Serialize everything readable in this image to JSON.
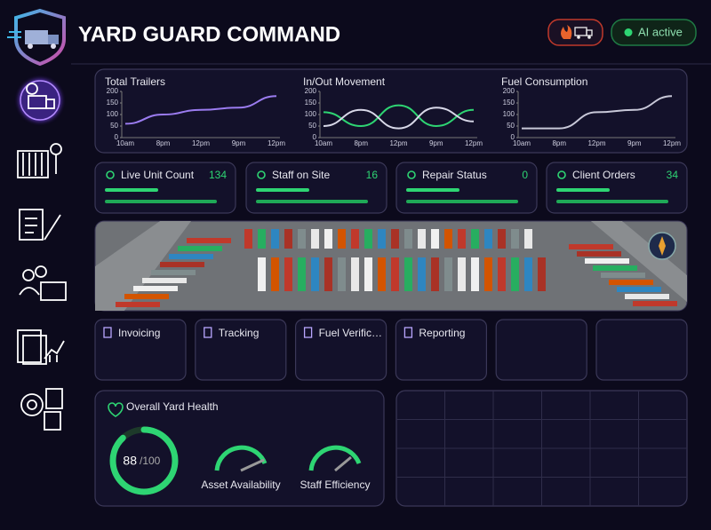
{
  "header": {
    "title": "YARD GUARD COMMAND",
    "ai_status": "AI active"
  },
  "chart_data": [
    {
      "type": "line",
      "title": "Total Trailers",
      "categories": [
        "10am",
        "8pm",
        "12pm",
        "9pm",
        "12pm"
      ],
      "ylim": [
        0,
        200
      ],
      "yticks": [
        0,
        50,
        100,
        150,
        200
      ],
      "series": [
        {
          "color": "#9b7cf0",
          "values": [
            60,
            100,
            120,
            130,
            180
          ]
        }
      ]
    },
    {
      "type": "line",
      "title": "In/Out Movement",
      "categories": [
        "10am",
        "8pm",
        "12pm",
        "9pm",
        "12pm"
      ],
      "ylim": [
        0,
        200
      ],
      "yticks": [
        0,
        50,
        100,
        150,
        200
      ],
      "series": [
        {
          "color": "#2ed573",
          "values": [
            110,
            50,
            140,
            50,
            120
          ]
        },
        {
          "color": "#d8d8e8",
          "values": [
            50,
            120,
            40,
            130,
            70
          ]
        }
      ]
    },
    {
      "type": "line",
      "title": "Fuel Consumption",
      "categories": [
        "10am",
        "8pm",
        "12pm",
        "9pm",
        "12pm"
      ],
      "ylim": [
        0,
        200
      ],
      "yticks": [
        0,
        50,
        100,
        150,
        200
      ],
      "series": [
        {
          "color": "#c8c8d8",
          "values": [
            40,
            40,
            110,
            120,
            180
          ]
        }
      ]
    }
  ],
  "stats": [
    {
      "label": "Live Unit Count",
      "value": 134
    },
    {
      "label": "Staff on Site",
      "value": 16
    },
    {
      "label": "Repair Status",
      "value": 0
    },
    {
      "label": "Client Orders",
      "value": 34
    }
  ],
  "modules": [
    "Invoicing",
    "Tracking",
    "Fuel Verific…",
    "Reporting"
  ],
  "health": {
    "title": "Overall Yard Health",
    "score": 88,
    "max": {
      "value": 100,
      "label": "/100"
    },
    "gauges": [
      "Asset Availability",
      "Staff Efficiency"
    ]
  }
}
